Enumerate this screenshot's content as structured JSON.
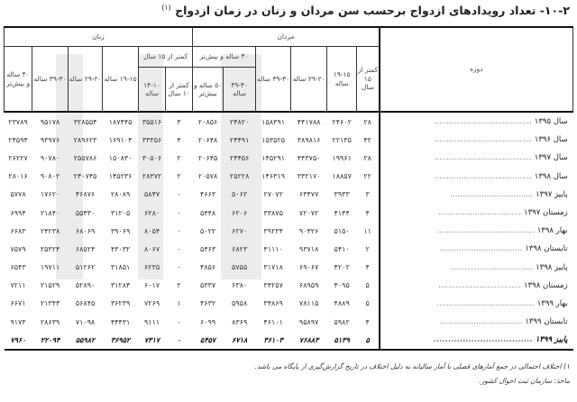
{
  "title": "۱۰-۲- تعداد رویدادهای ازدواج برحسب سن مردان و زنان در زمان ازدواج",
  "title_note": "(۱)",
  "header": {
    "period": "دوره",
    "men": "مردان",
    "women": "زنان",
    "men_cols": {
      "lt15": "کمتر از ۱۵ سال",
      "c15_19": "۱۹-۱۵ ساله",
      "c20_29": "۲۹-۲۰ ساله",
      "c30_39": "۳۹-۳۰ ساله",
      "g40": "۴۰ ساله و بیش‌تر",
      "c40_49": "۴۹-۴۰ ساله",
      "c50": "۵۰ ساله و بیش‌تر"
    },
    "women_cols": {
      "g15": "کمتر از ۱۵ سال",
      "lt10": "کمتر از ۱۰ سال",
      "c10_14": "۱۴-۱۰ ساله",
      "c15_19": "۱۹-۱۵ ساله",
      "c20_29": "۲۹-۲۰ ساله",
      "c30_39": "۳۹-۳۰ ساله",
      "c40": "۴۰ ساله و بیش‌تر"
    }
  },
  "rows": [
    {
      "period": "سال ۱۳۹۵",
      "v": [
        "۲۸",
        "۲۴۶۰۲",
        "۴۴۱۷۸۸",
        "۱۵۸۳۹۱",
        "۲۴۸۲۰",
        "۲۰۸۵۶",
        "۳",
        "۳۵۵۱۶",
        "۱۸۷۴۴۵",
        "۳۲۸۵۵۴",
        "۹۵۱۷۸",
        "۲۳۷۸۹"
      ]
    },
    {
      "period": "سال ۱۳۹۶",
      "v": [
        "۴۲",
        "۲۲۱۳۵",
        "۳۸۹۸۱۶",
        "۱۵۳۵۲۵",
        "۲۴۴۹۱",
        "۲۰۶۴۸",
        "۴",
        "۳۳۳۵۶",
        "۱۶۹۱۰۴",
        "۲۸۹۶۲۳",
        "۹۳۹۷۶",
        "۲۴۵۹۴"
      ]
    },
    {
      "period": "سال ۱۳۹۷",
      "v": [
        "۲۸",
        "۱۹۹۶۱",
        "۴۴۳۷۵۰",
        "۱۴۵۲۹۱",
        "۲۴۴۵۶",
        "۲۰۶۴۵",
        "۲",
        "۳۰۵۰۶",
        "۱۵۰۸۳۰",
        "۲۵۵۷۸۶",
        "۹۰۷۸۰",
        "۲۶۲۲۷"
      ]
    },
    {
      "period": "سال ۱۳۹۸",
      "v": [
        "۲۲",
        "۱۸۸۵۷",
        "۳۳۲۱۷۰",
        "۱۴۶۳۱۹",
        "۲۵۲۲۸",
        "۲۰۵۷۸",
        "۲",
        "۲۸۳۷۲",
        "۱۴۵۲۳۶",
        "۲۴۰۷۴۵",
        "۹۰۸۰۲",
        "۲۸۰۱۶"
      ]
    },
    {
      "period": "پاییز ۱۳۹۷",
      "v": [
        "۳",
        "۳۹۳۳",
        "۶۳۴۷۷",
        "۲۷۰۷۲",
        "۵۰۶۲",
        "۴۶۶۳",
        "۰",
        "۵۸۴۷",
        "۲۸۰۸۹",
        "۴۶۸۷۶",
        "۱۷۶۲۰",
        "۵۷۷۸"
      ]
    },
    {
      "period": "زمستان ۱۳۹۷",
      "v": [
        "۴",
        "۴۱۴۴",
        "۷۲۰۷۲",
        "۳۳۸۷۵",
        "۶۲۰۶",
        "۵۴۴۸",
        "۰",
        "۶۲۸۰",
        "۳۱۲۰۵",
        "۵۵۴۳۰",
        "۲۱۸۴۰",
        "۶۹۹۴"
      ]
    },
    {
      "period": "بهار ۱۳۹۸",
      "v": [
        "۱۱",
        "۵۱۵۰",
        "۹۰۴۲۶",
        "۳۹۲۳۴",
        "۶۲۷۰",
        "۵۰۲۲",
        "۰",
        "۸۰۵۴",
        "۳۹۰۶۹",
        "۶۸۰۶۹",
        "۲۴۲۳۸",
        "۶۶۸۳"
      ]
    },
    {
      "period": "تابستان ۱۳۹۸",
      "v": [
        "۲",
        "۵۴۱۰",
        "۹۳۷۱۸",
        "۴۱۱۱۰",
        "۶۸۲۳",
        "۵۴۶۳",
        "۰",
        "۸۰۶۷",
        "۴۳۰۳۲",
        "۶۸۵۲۴",
        "۲۵۳۲۴",
        "۷۵۷۹"
      ]
    },
    {
      "period": "پاییز ۱۳۹۸",
      "v": [
        "۴",
        "۴۲۰۲",
        "۶۹۰۶۷",
        "۳۱۷۱۸",
        "۵۷۵۵",
        "۴۸۵۶",
        "۰",
        "۶۲۳۵",
        "۳۱۸۵۱",
        "۵۱۲۶۲",
        "۱۹۷۱۱",
        "۶۵۴۳"
      ]
    },
    {
      "period": "زمستان ۱۳۹۸",
      "v": [
        "۵",
        "۴۰۹۵",
        "۶۸۹۵۹",
        "۳۴۲۵۷",
        "۶۳۸۰",
        "۵۳۳۷",
        "۲",
        "۶۰۱۷",
        "۳۱۲۸۴",
        "۵۲۸۹۰",
        "۲۱۵۲۹",
        "۷۲۱۱"
      ]
    },
    {
      "period": "بهار ۱۳۹۹",
      "v": [
        "۵",
        "۴۸۸۹",
        "۷۸۱۱۵",
        "۳۴۸۶۹",
        "۵۹۵۸",
        "۴۶۳۲",
        "۱",
        "۷۲۶۹",
        "۳۶۲۳۹",
        "۵۶۸۴۵",
        "۲۱۳۴۳",
        "۶۶۷۱"
      ]
    },
    {
      "period": "تابستان ۱۳۹۹",
      "v": [
        "۴",
        "۵۹۸۲",
        "۹۵۸۹۷",
        "۴۶۱۰۱",
        "۸۳۶۹",
        "۶۰۹۹",
        "۰",
        "۹۱۱۱",
        "۴۴۴۳۱",
        "۷۱۰۹۸",
        "۲۸۶۳۹",
        "۹۱۷۳"
      ]
    },
    {
      "period": "پاییز ۱۳۹۹",
      "bold": true,
      "v": [
        "۵",
        "۵۱۳۹",
        "۷۶۸۸۳",
        "۳۶۱۰۳",
        "۶۷۱۸",
        "۵۴۵۷",
        "۰",
        "۷۳۱۷",
        "۳۶۹۵۲",
        "۵۵۹۸۲",
        "۲۲۰۹۴",
        "۷۹۶۰"
      ]
    }
  ],
  "footnotes": {
    "note1": "۱) اختلاف احتمالی در جمع آمارهای فصلی با آمار سالیانه به دلیل اختلاف در تاریخ گزارش‌گیری از پایگاه می باشد.",
    "source": "ماخذ: سازمان ثبت احوال کشور."
  }
}
